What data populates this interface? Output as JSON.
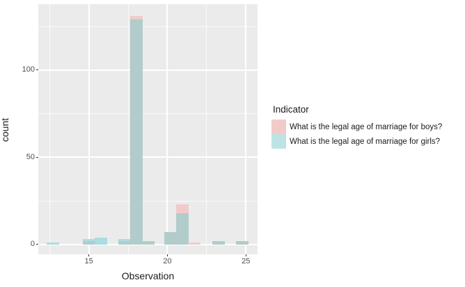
{
  "chart_data": {
    "type": "histogram-overlay",
    "x_title": "Observation",
    "y_title": "count",
    "legend_title": "Indicator",
    "bin_centers": [
      12.7,
      15.0,
      15.78,
      17.25,
      18.02,
      18.8,
      20.17,
      20.95,
      21.72,
      23.25,
      24.77
    ],
    "bin_width": 0.78,
    "series": [
      {
        "name": "What is the legal age of marriage for boys?",
        "values": [
          0,
          2,
          0,
          2,
          131,
          2,
          7,
          23,
          1,
          2,
          2
        ],
        "solo_color": "#EFCCC9",
        "legend_color": "#F2CBC9"
      },
      {
        "name": "What is the legal age of marriage for girls?",
        "values": [
          1,
          3,
          4,
          3,
          129,
          2,
          7,
          18,
          0,
          2,
          2
        ],
        "solo_color": "#A9DDE1",
        "legend_color": "#BEE3E5"
      }
    ],
    "overlap_color": "#B1CCCB",
    "x_ticks": [
      15,
      20,
      25
    ],
    "x_minor_gridlines": [
      12.5,
      17.5,
      22.5
    ],
    "y_ticks": [
      0,
      50,
      100
    ],
    "y_minor_gridlines": [
      25,
      75,
      125
    ],
    "xlim": [
      11.78,
      25.74
    ],
    "ylim": [
      -5.6,
      137.8
    ],
    "colors": {
      "panel_background": "#EBEBEB",
      "gridline": "#FFFFFF",
      "tick_label_text": "#4D4D4D",
      "axis_title_text": "#1A1A1A"
    }
  }
}
